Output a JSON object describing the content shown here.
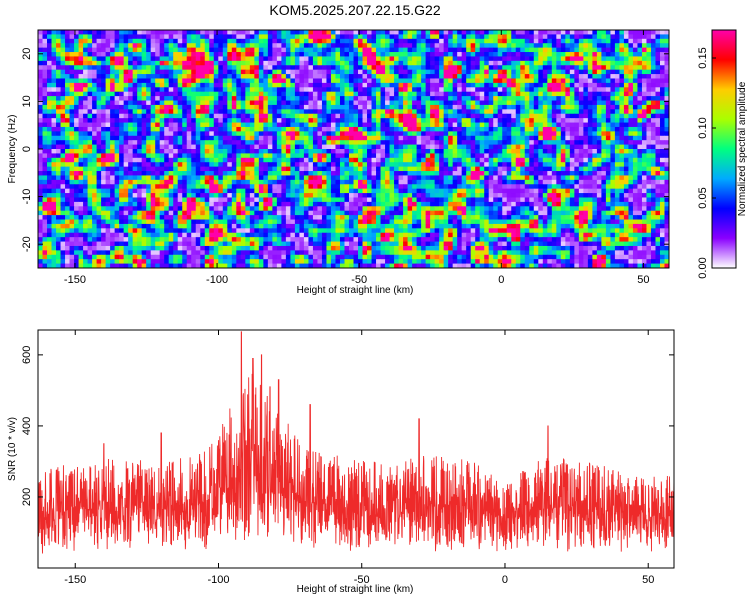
{
  "title": "KOM5.2025.207.22.15.G22",
  "chart_data": [
    {
      "type": "heatmap",
      "xlabel": "Height of straight line (km)",
      "ylabel": "Frequency (Hz)",
      "xlim": [
        -163,
        59
      ],
      "ylim": [
        -25,
        25
      ],
      "xticks": [
        -150,
        -100,
        -50,
        0,
        50
      ],
      "yticks": [
        -20,
        -10,
        0,
        10,
        20
      ],
      "colorbar": {
        "label": "Normalized spectral amplitude",
        "range": [
          0,
          0.17
        ],
        "ticks": [
          "0.00",
          "0.05",
          "0.10",
          "0.15"
        ],
        "colors": [
          "#ffffff",
          "#8a00ff",
          "#0000ff",
          "#00aaff",
          "#00ff80",
          "#aaff00",
          "#ffcc00",
          "#ff0000",
          "#ff00aa"
        ]
      },
      "peaks": [
        {
          "x": -1,
          "y": 16,
          "value": 0.17
        },
        {
          "x": -103,
          "y": -6,
          "value": 0.16
        },
        {
          "x": -101,
          "y": -8,
          "value": 0.14
        },
        {
          "x": -85,
          "y": -8,
          "value": 0.16
        },
        {
          "x": -83,
          "y": -11,
          "value": 0.15
        },
        {
          "x": -53,
          "y": 4,
          "value": 0.14
        },
        {
          "x": -53,
          "y": -2,
          "value": 0.1
        },
        {
          "x": -95,
          "y": 20,
          "value": 0.09
        },
        {
          "x": -76,
          "y": 19,
          "value": 0.08
        },
        {
          "x": -129,
          "y": 22,
          "value": 0.07
        },
        {
          "x": 15,
          "y": 22,
          "value": 0.08
        },
        {
          "x": 3,
          "y": 10,
          "value": 0.07
        },
        {
          "x": 15,
          "y": 3,
          "value": 0.08
        },
        {
          "x": -118,
          "y": 9,
          "value": 0.07
        },
        {
          "x": 53,
          "y": -4,
          "value": 0.08
        },
        {
          "x": -158,
          "y": -25,
          "value": 0.09
        },
        {
          "x": -40,
          "y": -18,
          "value": 0.07
        },
        {
          "x": -10,
          "y": -14,
          "value": 0.08
        }
      ]
    },
    {
      "type": "line",
      "xlabel": "Height of straight line (km)",
      "ylabel": "SNR (10 * v/v)",
      "xlim": [
        -163,
        59
      ],
      "ylim": [
        0,
        670
      ],
      "xticks": [
        -150,
        -100,
        -50,
        0,
        50
      ],
      "yticks": [
        200,
        400,
        600
      ],
      "color": "#ee2a2a",
      "envelope": [
        {
          "x": -163,
          "low": 40,
          "high": 280
        },
        {
          "x": -140,
          "low": 45,
          "high": 310
        },
        {
          "x": -120,
          "low": 45,
          "high": 300
        },
        {
          "x": -105,
          "low": 50,
          "high": 330
        },
        {
          "x": -95,
          "low": 60,
          "high": 470
        },
        {
          "x": -88,
          "low": 60,
          "high": 560
        },
        {
          "x": -82,
          "low": 60,
          "high": 480
        },
        {
          "x": -70,
          "low": 50,
          "high": 340
        },
        {
          "x": -55,
          "low": 45,
          "high": 310
        },
        {
          "x": -40,
          "low": 45,
          "high": 300
        },
        {
          "x": -25,
          "low": 40,
          "high": 320
        },
        {
          "x": -10,
          "low": 40,
          "high": 300
        },
        {
          "x": 0,
          "low": 40,
          "high": 240
        },
        {
          "x": 15,
          "low": 40,
          "high": 320
        },
        {
          "x": 30,
          "low": 40,
          "high": 300
        },
        {
          "x": 45,
          "low": 40,
          "high": 260
        },
        {
          "x": 59,
          "low": 40,
          "high": 260
        }
      ],
      "peaks": [
        {
          "x": -92,
          "y": 665
        },
        {
          "x": -88,
          "y": 590
        },
        {
          "x": -85,
          "y": 600
        },
        {
          "x": -82,
          "y": 510
        },
        {
          "x": -79,
          "y": 530
        },
        {
          "x": -140,
          "y": 350
        },
        {
          "x": -120,
          "y": 380
        },
        {
          "x": -68,
          "y": 460
        },
        {
          "x": -30,
          "y": 420
        },
        {
          "x": 15,
          "y": 400
        }
      ]
    }
  ]
}
